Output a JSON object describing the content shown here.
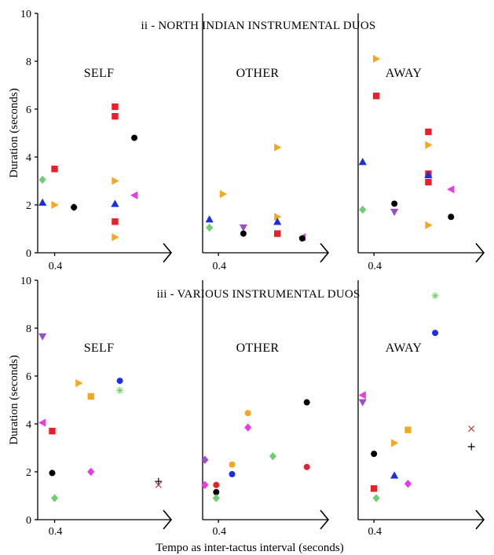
{
  "chart_data": {
    "type": "scatter",
    "ylabel": "Duration (seconds)",
    "xlabel": "Tempo as inter-tactus interval (seconds)",
    "ylim": [
      0,
      10
    ],
    "xlim": [
      0.33,
      0.85
    ],
    "yticks": [
      0,
      2,
      4,
      6,
      8,
      10
    ],
    "xticks": [
      0.4
    ],
    "xtick_labels": [
      "0.4"
    ],
    "colors": {
      "red": "#e8202a",
      "orange": "#f5a623",
      "blue": "#1a2fe0",
      "green": "#6fcf6f",
      "purple": "#9b4dca",
      "magenta": "#e83be8",
      "black": "#000000",
      "brown": "#b03a3a"
    },
    "figures": [
      {
        "title": "ii - NORTH INDIAN INSTRUMENTAL DUOS",
        "panels": [
          {
            "label": "SELF",
            "points": [
              {
                "x": 0.35,
                "y": 3.05,
                "shape": "diamond",
                "color": "green"
              },
              {
                "x": 0.35,
                "y": 2.1,
                "shape": "triangle-up",
                "color": "blue"
              },
              {
                "x": 0.4,
                "y": 3.5,
                "shape": "square",
                "color": "red"
              },
              {
                "x": 0.4,
                "y": 2.0,
                "shape": "triangle-right",
                "color": "orange"
              },
              {
                "x": 0.48,
                "y": 1.9,
                "shape": "diamond",
                "color": "purple"
              },
              {
                "x": 0.48,
                "y": 1.9,
                "shape": "circle",
                "color": "black"
              },
              {
                "x": 0.65,
                "y": 6.1,
                "shape": "square",
                "color": "red"
              },
              {
                "x": 0.65,
                "y": 5.7,
                "shape": "square",
                "color": "red"
              },
              {
                "x": 0.65,
                "y": 3.0,
                "shape": "triangle-right",
                "color": "orange"
              },
              {
                "x": 0.65,
                "y": 2.05,
                "shape": "triangle-up",
                "color": "blue"
              },
              {
                "x": 0.65,
                "y": 1.3,
                "shape": "square",
                "color": "red"
              },
              {
                "x": 0.65,
                "y": 0.65,
                "shape": "triangle-right",
                "color": "orange"
              },
              {
                "x": 0.73,
                "y": 4.8,
                "shape": "circle",
                "color": "black"
              },
              {
                "x": 0.73,
                "y": 2.4,
                "shape": "triangle-left",
                "color": "magenta"
              }
            ]
          },
          {
            "label": "OTHER",
            "points": [
              {
                "x": 0.36,
                "y": 1.4,
                "shape": "triangle-up",
                "color": "blue"
              },
              {
                "x": 0.36,
                "y": 1.05,
                "shape": "diamond",
                "color": "green"
              },
              {
                "x": 0.42,
                "y": 2.45,
                "shape": "triangle-right",
                "color": "orange"
              },
              {
                "x": 0.51,
                "y": 1.05,
                "shape": "triangle-down",
                "color": "purple"
              },
              {
                "x": 0.51,
                "y": 0.8,
                "shape": "circle",
                "color": "black"
              },
              {
                "x": 0.66,
                "y": 4.4,
                "shape": "triangle-right",
                "color": "orange"
              },
              {
                "x": 0.66,
                "y": 1.5,
                "shape": "triangle-right",
                "color": "orange"
              },
              {
                "x": 0.66,
                "y": 1.3,
                "shape": "triangle-up",
                "color": "blue"
              },
              {
                "x": 0.66,
                "y": 0.8,
                "shape": "square",
                "color": "red"
              },
              {
                "x": 0.77,
                "y": 0.65,
                "shape": "triangle-left",
                "color": "magenta"
              },
              {
                "x": 0.77,
                "y": 0.6,
                "shape": "circle",
                "color": "black"
              }
            ]
          },
          {
            "label": "AWAY",
            "points": [
              {
                "x": 0.35,
                "y": 3.8,
                "shape": "triangle-up",
                "color": "blue"
              },
              {
                "x": 0.35,
                "y": 1.8,
                "shape": "diamond",
                "color": "green"
              },
              {
                "x": 0.41,
                "y": 8.1,
                "shape": "triangle-right",
                "color": "orange"
              },
              {
                "x": 0.41,
                "y": 6.55,
                "shape": "square",
                "color": "red"
              },
              {
                "x": 0.49,
                "y": 2.05,
                "shape": "circle",
                "color": "black"
              },
              {
                "x": 0.49,
                "y": 1.7,
                "shape": "triangle-down",
                "color": "purple"
              },
              {
                "x": 0.64,
                "y": 5.05,
                "shape": "square",
                "color": "red"
              },
              {
                "x": 0.64,
                "y": 4.5,
                "shape": "triangle-right",
                "color": "orange"
              },
              {
                "x": 0.64,
                "y": 3.3,
                "shape": "square",
                "color": "red"
              },
              {
                "x": 0.64,
                "y": 3.25,
                "shape": "triangle-up",
                "color": "blue"
              },
              {
                "x": 0.64,
                "y": 2.95,
                "shape": "square",
                "color": "red"
              },
              {
                "x": 0.64,
                "y": 1.15,
                "shape": "triangle-right",
                "color": "orange"
              },
              {
                "x": 0.74,
                "y": 2.65,
                "shape": "triangle-left",
                "color": "magenta"
              },
              {
                "x": 0.74,
                "y": 1.5,
                "shape": "circle",
                "color": "black"
              }
            ]
          }
        ]
      },
      {
        "title": "iii - VARIOUS INSTRUMENTAL DUOS",
        "panels": [
          {
            "label": "SELF",
            "points": [
              {
                "x": 0.35,
                "y": 7.65,
                "shape": "triangle-down",
                "color": "purple"
              },
              {
                "x": 0.35,
                "y": 4.05,
                "shape": "triangle-left",
                "color": "magenta"
              },
              {
                "x": 0.39,
                "y": 3.7,
                "shape": "square",
                "color": "red"
              },
              {
                "x": 0.39,
                "y": 1.95,
                "shape": "circle",
                "color": "black"
              },
              {
                "x": 0.4,
                "y": 0.9,
                "shape": "diamond",
                "color": "green"
              },
              {
                "x": 0.5,
                "y": 5.7,
                "shape": "triangle-right",
                "color": "orange"
              },
              {
                "x": 0.55,
                "y": 5.15,
                "shape": "square",
                "color": "orange"
              },
              {
                "x": 0.55,
                "y": 2.0,
                "shape": "diamond",
                "color": "magenta"
              },
              {
                "x": 0.67,
                "y": 5.8,
                "shape": "circle",
                "color": "blue"
              },
              {
                "x": 0.67,
                "y": 5.4,
                "shape": "asterisk",
                "color": "green"
              },
              {
                "x": 0.83,
                "y": 1.6,
                "shape": "plus",
                "color": "black"
              },
              {
                "x": 0.83,
                "y": 1.45,
                "shape": "cross",
                "color": "brown"
              }
            ]
          },
          {
            "label": "OTHER",
            "points": [
              {
                "x": 0.34,
                "y": 2.5,
                "shape": "diamond",
                "color": "purple"
              },
              {
                "x": 0.34,
                "y": 1.45,
                "shape": "diamond",
                "color": "magenta"
              },
              {
                "x": 0.39,
                "y": 1.45,
                "shape": "circle",
                "color": "red"
              },
              {
                "x": 0.39,
                "y": 1.15,
                "shape": "circle",
                "color": "black"
              },
              {
                "x": 0.39,
                "y": 0.9,
                "shape": "diamond",
                "color": "green"
              },
              {
                "x": 0.46,
                "y": 2.3,
                "shape": "circle",
                "color": "orange"
              },
              {
                "x": 0.46,
                "y": 1.9,
                "shape": "circle",
                "color": "blue"
              },
              {
                "x": 0.53,
                "y": 4.45,
                "shape": "circle",
                "color": "orange"
              },
              {
                "x": 0.53,
                "y": 3.85,
                "shape": "diamond",
                "color": "magenta"
              },
              {
                "x": 0.64,
                "y": 2.65,
                "shape": "diamond",
                "color": "green"
              },
              {
                "x": 0.79,
                "y": 4.9,
                "shape": "circle",
                "color": "black"
              },
              {
                "x": 0.79,
                "y": 2.2,
                "shape": "circle",
                "color": "red"
              }
            ]
          },
          {
            "label": "AWAY",
            "points": [
              {
                "x": 0.35,
                "y": 5.2,
                "shape": "triangle-left",
                "color": "magenta"
              },
              {
                "x": 0.35,
                "y": 4.9,
                "shape": "triangle-down",
                "color": "purple"
              },
              {
                "x": 0.4,
                "y": 2.75,
                "shape": "circle",
                "color": "black"
              },
              {
                "x": 0.4,
                "y": 1.3,
                "shape": "square",
                "color": "red"
              },
              {
                "x": 0.41,
                "y": 0.9,
                "shape": "diamond",
                "color": "green"
              },
              {
                "x": 0.49,
                "y": 3.2,
                "shape": "triangle-right",
                "color": "orange"
              },
              {
                "x": 0.49,
                "y": 1.85,
                "shape": "triangle-up",
                "color": "blue"
              },
              {
                "x": 0.55,
                "y": 3.75,
                "shape": "square",
                "color": "orange"
              },
              {
                "x": 0.55,
                "y": 1.5,
                "shape": "diamond",
                "color": "magenta"
              },
              {
                "x": 0.67,
                "y": 9.35,
                "shape": "asterisk",
                "color": "green"
              },
              {
                "x": 0.67,
                "y": 7.8,
                "shape": "circle",
                "color": "blue"
              },
              {
                "x": 0.83,
                "y": 3.8,
                "shape": "cross",
                "color": "brown"
              },
              {
                "x": 0.83,
                "y": 3.05,
                "shape": "plus",
                "color": "black"
              }
            ]
          }
        ]
      }
    ]
  }
}
